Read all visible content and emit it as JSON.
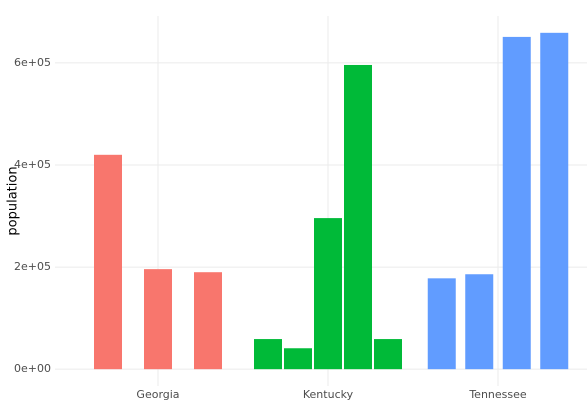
{
  "chart_data": {
    "type": "bar",
    "y_label": "population",
    "categories": [
      "Georgia",
      "Kentucky",
      "Tennessee"
    ],
    "values": [
      [
        420000,
        196000,
        190000
      ],
      [
        59000,
        41000,
        296000,
        596000,
        59000
      ],
      [
        178000,
        186000,
        651000,
        659000
      ]
    ],
    "colors": [
      "#F8766D",
      "#00BA38",
      "#619CFF"
    ],
    "ylim": [
      -32950,
      691950
    ],
    "yticks": [
      {
        "value": 0,
        "label": "0e+00"
      },
      {
        "value": 200000,
        "label": "2e+05"
      },
      {
        "value": 400000,
        "label": "4e+05"
      },
      {
        "value": 600000,
        "label": "6e+05"
      }
    ],
    "grid": true
  }
}
